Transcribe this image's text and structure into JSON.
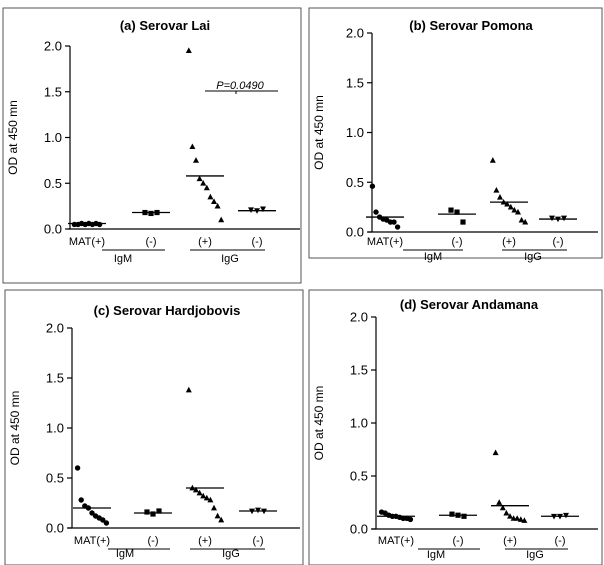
{
  "chart_data": [
    {
      "type": "scatter",
      "title": "(a) Serovar Lai",
      "ylabel": "OD at 450 mn",
      "ylim": [
        0,
        2.0
      ],
      "yticks": [
        "0.0",
        "0.5",
        "1.0",
        "1.5",
        "2.0"
      ],
      "categories": [
        "MAT(+)",
        "(-)",
        "(+)",
        "(-)"
      ],
      "groups": [
        "IgM",
        "IgG"
      ],
      "series": [
        {
          "category": "MAT(+)",
          "group": "IgM",
          "marker": "circle",
          "mean": 0.06,
          "values": [
            0.05,
            0.05,
            0.06,
            0.05,
            0.06,
            0.05,
            0.06,
            0.05
          ]
        },
        {
          "category": "(-)",
          "group": "IgM",
          "marker": "square",
          "mean": 0.18,
          "values": [
            0.18,
            0.17,
            0.18
          ]
        },
        {
          "category": "(+)",
          "group": "IgG",
          "marker": "triangle-up",
          "mean": 0.58,
          "values": [
            1.95,
            0.9,
            0.75,
            0.55,
            0.5,
            0.45,
            0.35,
            0.3,
            0.25,
            0.1
          ]
        },
        {
          "category": "(-)",
          "group": "IgG",
          "marker": "triangle-down",
          "mean": 0.2,
          "values": [
            0.21,
            0.2,
            0.22
          ]
        }
      ],
      "annotation": {
        "text": "P=0.0490"
      }
    },
    {
      "type": "scatter",
      "title": "(b) Serovar Pomona",
      "ylabel": "OD at 450 mn",
      "ylim": [
        0,
        2.0
      ],
      "yticks": [
        "0.0",
        "0.5",
        "1.0",
        "1.5",
        "2.0"
      ],
      "categories": [
        "MAT(+)",
        "(-)",
        "(+)",
        "(-)"
      ],
      "groups": [
        "IgM",
        "IgG"
      ],
      "series": [
        {
          "category": "MAT(+)",
          "group": "IgM",
          "marker": "circle",
          "mean": 0.15,
          "values": [
            0.46,
            0.2,
            0.15,
            0.13,
            0.12,
            0.1,
            0.1,
            0.05
          ]
        },
        {
          "category": "(-)",
          "group": "IgM",
          "marker": "square",
          "mean": 0.18,
          "values": [
            0.22,
            0.2,
            0.1
          ]
        },
        {
          "category": "(+)",
          "group": "IgG",
          "marker": "triangle-up",
          "mean": 0.3,
          "values": [
            0.72,
            0.42,
            0.35,
            0.3,
            0.28,
            0.25,
            0.22,
            0.2,
            0.12,
            0.1
          ]
        },
        {
          "category": "(-)",
          "group": "IgG",
          "marker": "triangle-down",
          "mean": 0.13,
          "values": [
            0.14,
            0.13,
            0.14
          ]
        }
      ]
    },
    {
      "type": "scatter",
      "title": "(c) Serovar Hardjobovis",
      "ylabel": "OD at 450 mn",
      "ylim": [
        0,
        2.0
      ],
      "yticks": [
        "0.0",
        "0.5",
        "1.0",
        "1.5",
        "2.0"
      ],
      "categories": [
        "MAT(+)",
        "(-)",
        "(+)",
        "(-)"
      ],
      "groups": [
        "IgM",
        "IgG"
      ],
      "series": [
        {
          "category": "MAT(+)",
          "group": "IgM",
          "marker": "circle",
          "mean": 0.2,
          "values": [
            0.6,
            0.28,
            0.22,
            0.2,
            0.15,
            0.12,
            0.1,
            0.08,
            0.05
          ]
        },
        {
          "category": "(-)",
          "group": "IgM",
          "marker": "square",
          "mean": 0.15,
          "values": [
            0.16,
            0.14,
            0.17
          ]
        },
        {
          "category": "(+)",
          "group": "IgG",
          "marker": "triangle-up",
          "mean": 0.4,
          "values": [
            1.38,
            0.4,
            0.38,
            0.35,
            0.32,
            0.3,
            0.28,
            0.2,
            0.12,
            0.08
          ]
        },
        {
          "category": "(-)",
          "group": "IgG",
          "marker": "triangle-down",
          "mean": 0.17,
          "values": [
            0.17,
            0.18,
            0.17
          ]
        }
      ]
    },
    {
      "type": "scatter",
      "title": "(d) Serovar Andamana",
      "ylabel": "OD at 450 mn",
      "ylim": [
        0,
        2.0
      ],
      "yticks": [
        "0.0",
        "0.5",
        "1.0",
        "1.5",
        "2.0"
      ],
      "categories": [
        "MAT(+)",
        "(-)",
        "(+)",
        "(-)"
      ],
      "groups": [
        "IgM",
        "IgG"
      ],
      "series": [
        {
          "category": "MAT(+)",
          "group": "IgM",
          "marker": "circle",
          "mean": 0.12,
          "values": [
            0.16,
            0.15,
            0.13,
            0.12,
            0.12,
            0.11,
            0.1,
            0.1,
            0.09
          ]
        },
        {
          "category": "(-)",
          "group": "IgM",
          "marker": "square",
          "mean": 0.13,
          "values": [
            0.14,
            0.13,
            0.12
          ]
        },
        {
          "category": "(+)",
          "group": "IgG",
          "marker": "triangle-up",
          "mean": 0.22,
          "values": [
            0.72,
            0.25,
            0.2,
            0.15,
            0.12,
            0.1,
            0.1,
            0.09,
            0.08
          ]
        },
        {
          "category": "(-)",
          "group": "IgG",
          "marker": "triangle-down",
          "mean": 0.12,
          "values": [
            0.12,
            0.12,
            0.13
          ]
        }
      ]
    }
  ]
}
